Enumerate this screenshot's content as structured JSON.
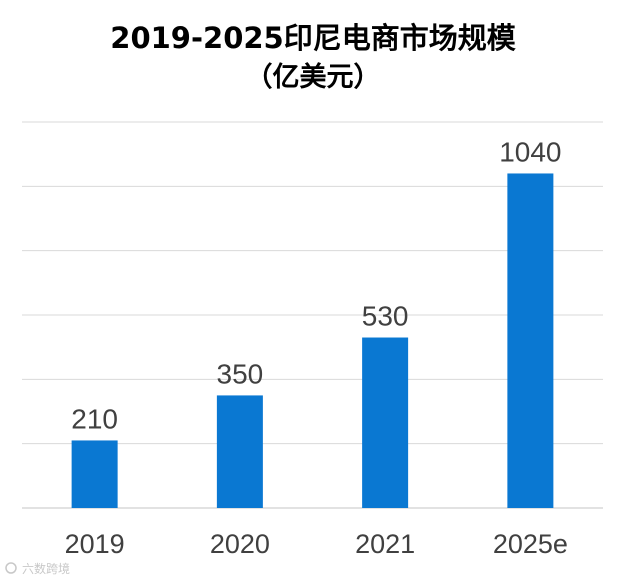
{
  "chart_data": {
    "type": "bar",
    "title": "2019-2025印尼电商市场规模",
    "subtitle": "（亿美元）",
    "categories": [
      "2019",
      "2020",
      "2021",
      "2025e"
    ],
    "values": [
      210,
      350,
      530,
      1040
    ],
    "data_labels": [
      "210",
      "350",
      "530",
      "1040"
    ],
    "ylim": [
      0,
      1200
    ],
    "gridlines": [
      0,
      200,
      400,
      600,
      800,
      1000,
      1200
    ],
    "grid": true,
    "legend": "none",
    "bar_color": "#0a78d2",
    "grid_color": "#d9d9d9"
  },
  "watermark": {
    "text": "六数跨境"
  }
}
